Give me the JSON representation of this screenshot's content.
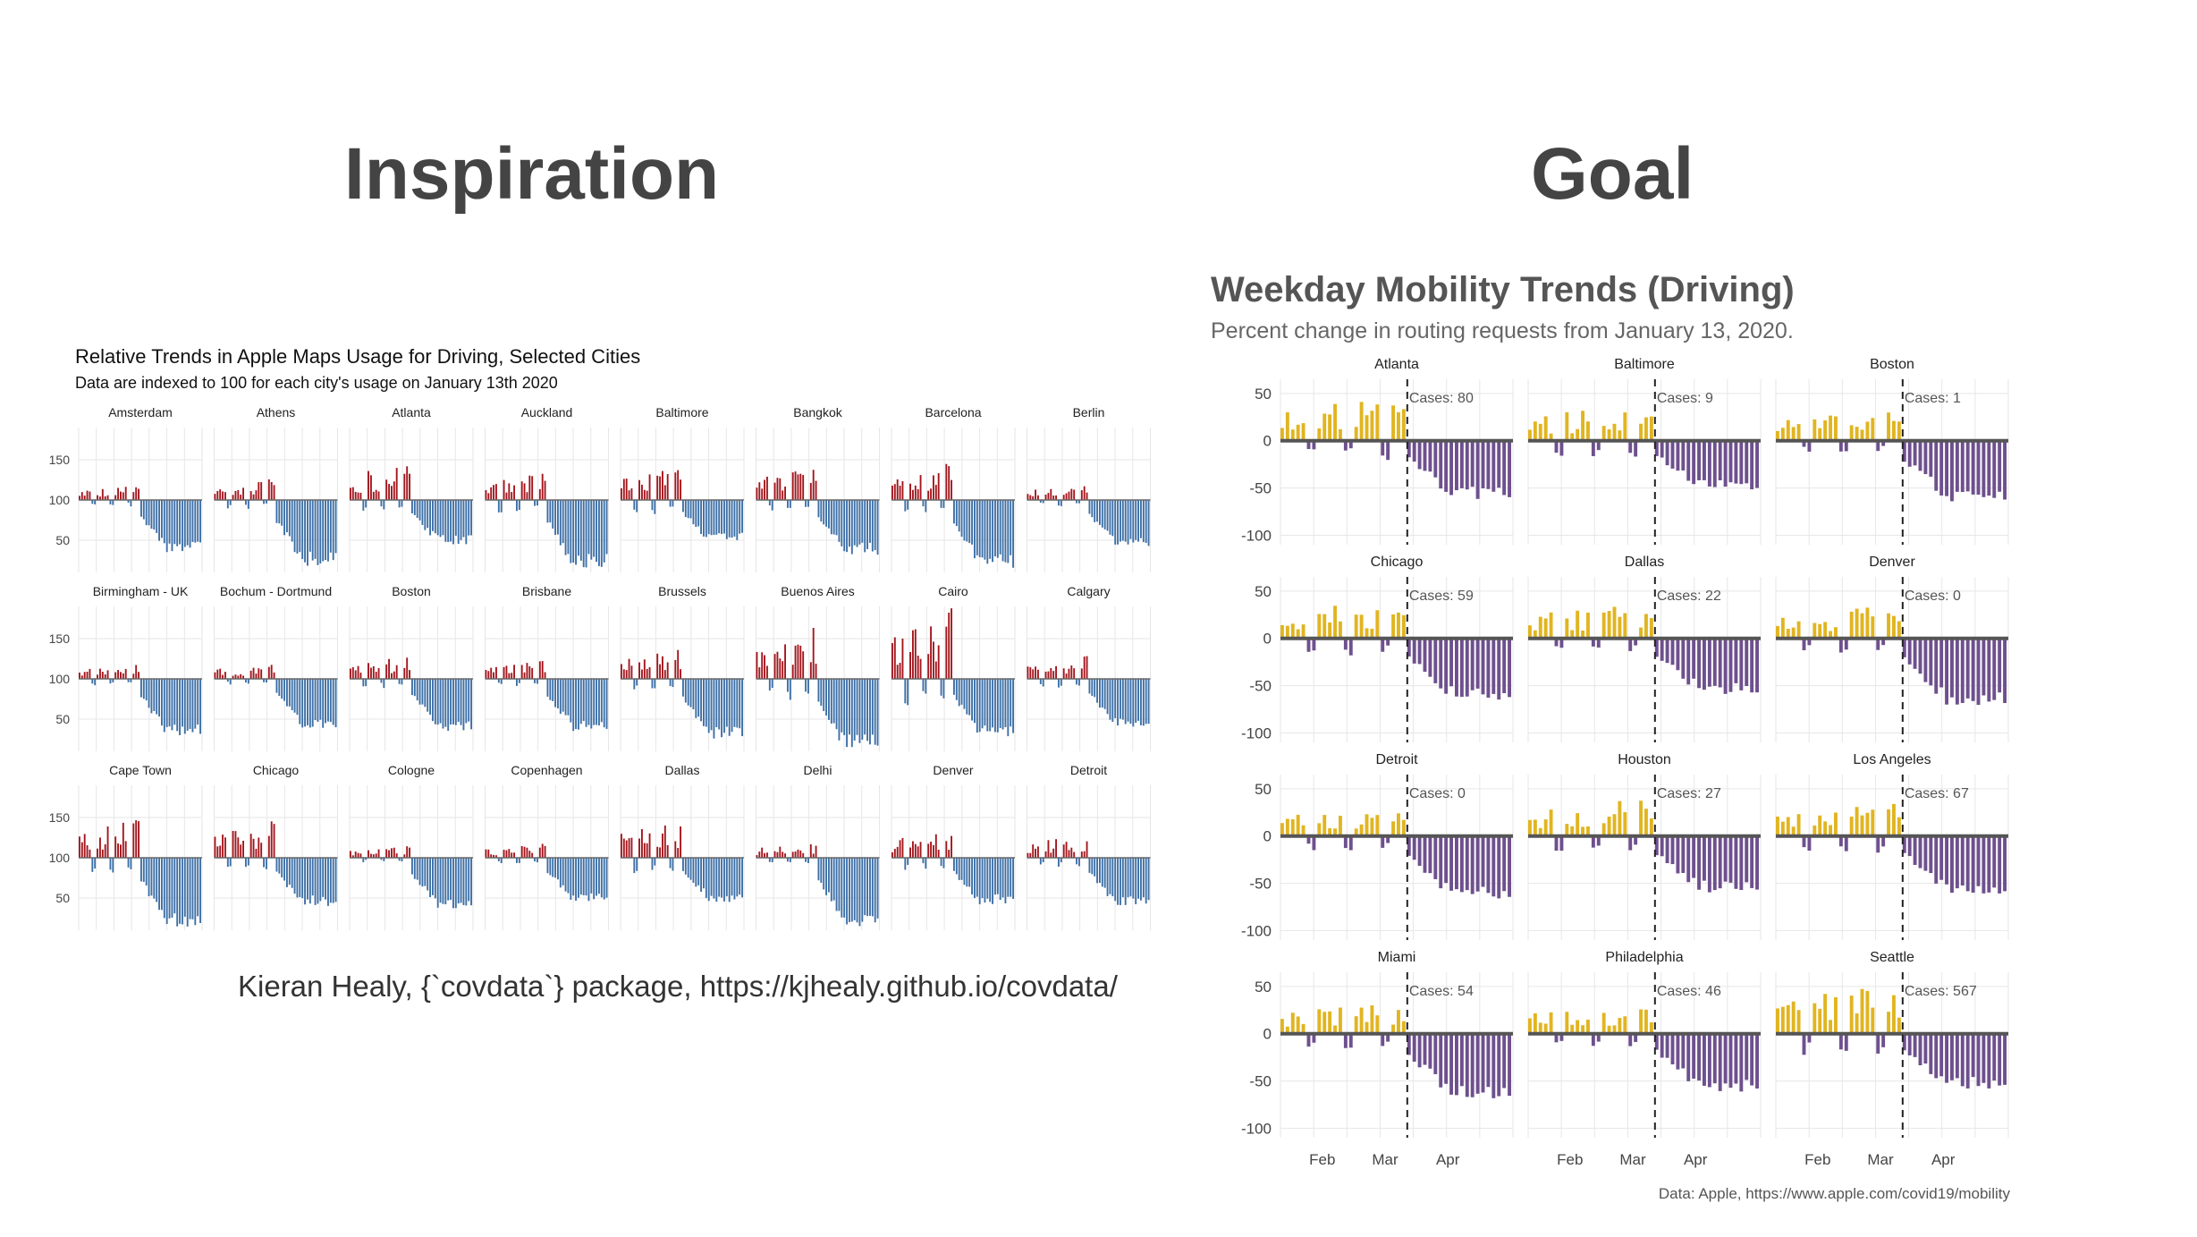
{
  "headings": {
    "left": "Inspiration",
    "right": "Goal"
  },
  "inspiration": {
    "title": "Relative Trends in Apple Maps Usage for Driving, Selected Cities",
    "subtitle": "Data are indexed to 100 for each city's usage on January 13th 2020",
    "credit": "Kieran Healy, {`covdata`} package, https://kjhealy.github.io/covdata/"
  },
  "goal": {
    "title": "Weekday Mobility Trends (Driving)",
    "subtitle": "Percent change in routing requests from January 13, 2020.",
    "source": "Data: Apple, https://www.apple.com/covid19/mobility"
  },
  "colors": {
    "insp_above": "#a3151c",
    "insp_below": "#3c6fa6",
    "goal_above": "#e1b521",
    "goal_below": "#6e508e",
    "grid": "#e6e6e6",
    "baseline": "#555555"
  },
  "chart_data": [
    {
      "type": "bar",
      "chart": "inspiration",
      "facet_rows": 3,
      "facet_cols": 8,
      "baseline": 100,
      "y_ticks": [
        "150",
        "100",
        "50"
      ],
      "y_tick_values": [
        150,
        100,
        50
      ],
      "ylim": [
        10,
        190
      ],
      "facets": [
        {
          "label": "Amsterdam",
          "pre_peak": 120,
          "post_min": 35
        },
        {
          "label": "Athens",
          "pre_peak": 128,
          "post_min": 18
        },
        {
          "label": "Atlanta",
          "pre_peak": 152,
          "post_min": 45
        },
        {
          "label": "Auckland",
          "pre_peak": 140,
          "post_min": 15
        },
        {
          "label": "Baltimore",
          "pre_peak": 145,
          "post_min": 48
        },
        {
          "label": "Bangkok",
          "pre_peak": 145,
          "post_min": 32
        },
        {
          "label": "Barcelona",
          "pre_peak": 150,
          "post_min": 15
        },
        {
          "label": "Berlin",
          "pre_peak": 120,
          "post_min": 42
        },
        {
          "label": "Birmingham - UK",
          "pre_peak": 120,
          "post_min": 30
        },
        {
          "label": "Bochum - Dortmund",
          "pre_peak": 120,
          "post_min": 38
        },
        {
          "label": "Boston",
          "pre_peak": 130,
          "post_min": 35
        },
        {
          "label": "Brisbane",
          "pre_peak": 125,
          "post_min": 35
        },
        {
          "label": "Brussels",
          "pre_peak": 140,
          "post_min": 25
        },
        {
          "label": "Buenos Aires",
          "pre_peak": 170,
          "post_min": 12
        },
        {
          "label": "Cairo",
          "pre_peak": 190,
          "post_min": 28
        },
        {
          "label": "Calgary",
          "pre_peak": 130,
          "post_min": 40
        },
        {
          "label": "Cape Town",
          "pre_peak": 150,
          "post_min": 12
        },
        {
          "label": "Chicago",
          "pre_peak": 148,
          "post_min": 40
        },
        {
          "label": "Cologne",
          "pre_peak": 115,
          "post_min": 35
        },
        {
          "label": "Copenhagen",
          "pre_peak": 118,
          "post_min": 45
        },
        {
          "label": "Dallas",
          "pre_peak": 150,
          "post_min": 45
        },
        {
          "label": "Delhi",
          "pre_peak": 120,
          "post_min": 15
        },
        {
          "label": "Denver",
          "pre_peak": 138,
          "post_min": 42
        },
        {
          "label": "Detroit",
          "pre_peak": 130,
          "post_min": 40
        }
      ]
    },
    {
      "type": "bar",
      "chart": "goal",
      "facet_rows": 4,
      "facet_cols": 3,
      "baseline": 0,
      "y_ticks": [
        "50",
        "0",
        "-50",
        "-100"
      ],
      "y_tick_values": [
        50,
        0,
        -50,
        -100
      ],
      "ylim": [
        -110,
        65
      ],
      "x_ticks": [
        "Feb",
        "Mar",
        "Apr"
      ],
      "facets": [
        {
          "label": "Atlanta",
          "cases": "Cases: 80",
          "pre_peak": 52,
          "post_min": -62
        },
        {
          "label": "Baltimore",
          "cases": "Cases: 9",
          "pre_peak": 42,
          "post_min": -52
        },
        {
          "label": "Boston",
          "cases": "Cases: 1",
          "pre_peak": 35,
          "post_min": -65
        },
        {
          "label": "Chicago",
          "cases": "Cases: 59",
          "pre_peak": 45,
          "post_min": -65
        },
        {
          "label": "Dallas",
          "cases": "Cases: 22",
          "pre_peak": 42,
          "post_min": -60
        },
        {
          "label": "Denver",
          "cases": "Cases: 0",
          "pre_peak": 38,
          "post_min": -72
        },
        {
          "label": "Detroit",
          "cases": "Cases: 0",
          "pre_peak": 38,
          "post_min": -68
        },
        {
          "label": "Houston",
          "cases": "Cases: 27",
          "pre_peak": 45,
          "post_min": -60
        },
        {
          "label": "Los Angeles",
          "cases": "Cases: 67",
          "pre_peak": 52,
          "post_min": -62
        },
        {
          "label": "Miami",
          "cases": "Cases: 54",
          "pre_peak": 38,
          "post_min": -70
        },
        {
          "label": "Philadelphia",
          "cases": "Cases: 46",
          "pre_peak": 38,
          "post_min": -62
        },
        {
          "label": "Seattle",
          "cases": "Cases: 567",
          "pre_peak": 60,
          "post_min": -58
        }
      ]
    }
  ]
}
